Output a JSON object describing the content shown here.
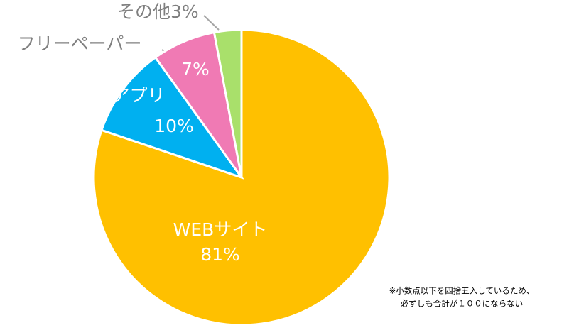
{
  "chart_data": {
    "type": "pie",
    "categories": [
      "WEBサイト",
      "アプリ",
      "フリーペーパー",
      "その他"
    ],
    "values": [
      81,
      10,
      7,
      3
    ],
    "value_labels": [
      "81%",
      "10%",
      "7%",
      "3%"
    ],
    "colors": [
      "#ffc000",
      "#00b0f0",
      "#f07ab4",
      "#a9e06b"
    ],
    "annotations": [
      "※小数点以下を四捨五入しているため、",
      "必ずしも合計が１００にならない"
    ]
  }
}
